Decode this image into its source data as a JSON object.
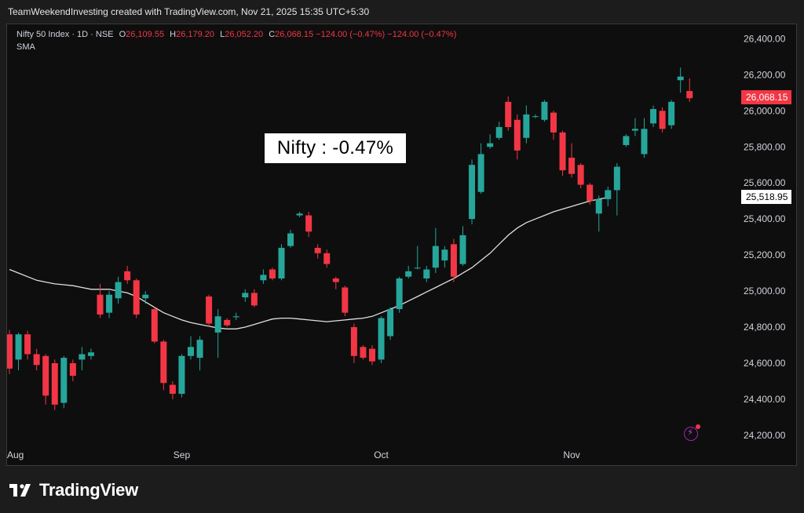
{
  "header": {
    "caption": "TeamWeekendInvesting created with TradingView.com, Nov 21, 2025 15:35 UTC+5:30"
  },
  "legend": {
    "symbol": "Nifty 50 Index · 1D · NSE",
    "open_label": "O",
    "open": "26,109.55",
    "high_label": "H",
    "high": "26,179.20",
    "low_label": "L",
    "low": "26,052.20",
    "close_label": "C",
    "close": "26,068.15",
    "change": "−124.00 (−0.47%)",
    "change2": "−124.00 (−0.47%)",
    "indicator": "SMA"
  },
  "annotation": "Nifty : -0.47%",
  "price_labels": {
    "last": "26,068.15",
    "sma": "25,518.95"
  },
  "brand": {
    "name": "TradingView"
  },
  "colors": {
    "up": "#26a69a",
    "down": "#f23645",
    "sma_line": "#e0e0e0",
    "background": "#0e0e0e"
  },
  "icons": {
    "alert": "lightning-bolt-icon"
  },
  "chart_data": {
    "type": "candlestick",
    "x_tick_labels": [
      "Aug",
      "Sep",
      "Oct",
      "Nov"
    ],
    "y_tick_labels": [
      "26,400.00",
      "26,200.00",
      "26,000.00",
      "25,800.00",
      "25,600.00",
      "25,400.00",
      "25,200.00",
      "25,000.00",
      "24,800.00",
      "24,600.00",
      "24,400.00",
      "24,200.00"
    ],
    "ylim": [
      24130,
      26480
    ],
    "candles": [
      {
        "o": 24760,
        "h": 24785,
        "l": 24540,
        "c": 24570
      },
      {
        "o": 24620,
        "h": 24770,
        "l": 24560,
        "c": 24760
      },
      {
        "o": 24760,
        "h": 24780,
        "l": 24620,
        "c": 24650
      },
      {
        "o": 24650,
        "h": 24680,
        "l": 24560,
        "c": 24590
      },
      {
        "o": 24640,
        "h": 24650,
        "l": 24370,
        "c": 24420
      },
      {
        "o": 24600,
        "h": 24620,
        "l": 24340,
        "c": 24370
      },
      {
        "o": 24380,
        "h": 24640,
        "l": 24350,
        "c": 24630
      },
      {
        "o": 24600,
        "h": 24620,
        "l": 24500,
        "c": 24530
      },
      {
        "o": 24620,
        "h": 24690,
        "l": 24560,
        "c": 24650
      },
      {
        "o": 24640,
        "h": 24680,
        "l": 24620,
        "c": 24660
      },
      {
        "o": 24980,
        "h": 25040,
        "l": 24850,
        "c": 24870
      },
      {
        "o": 24880,
        "h": 25000,
        "l": 24850,
        "c": 24980
      },
      {
        "o": 24960,
        "h": 25080,
        "l": 24930,
        "c": 25050
      },
      {
        "o": 25110,
        "h": 25140,
        "l": 25040,
        "c": 25060
      },
      {
        "o": 25060,
        "h": 25070,
        "l": 24850,
        "c": 24870
      },
      {
        "o": 24960,
        "h": 25000,
        "l": 24930,
        "c": 24980
      },
      {
        "o": 24900,
        "h": 24910,
        "l": 24710,
        "c": 24720
      },
      {
        "o": 24720,
        "h": 24730,
        "l": 24450,
        "c": 24490
      },
      {
        "o": 24480,
        "h": 24500,
        "l": 24400,
        "c": 24430
      },
      {
        "o": 24430,
        "h": 24650,
        "l": 24410,
        "c": 24640
      },
      {
        "o": 24640,
        "h": 24750,
        "l": 24620,
        "c": 24690
      },
      {
        "o": 24630,
        "h": 24750,
        "l": 24560,
        "c": 24730
      },
      {
        "o": 24970,
        "h": 24980,
        "l": 24800,
        "c": 24820
      },
      {
        "o": 24770,
        "h": 24900,
        "l": 24630,
        "c": 24860
      },
      {
        "o": 24840,
        "h": 24850,
        "l": 24800,
        "c": 24810
      },
      {
        "o": 24855,
        "h": 24880,
        "l": 24840,
        "c": 24860
      },
      {
        "o": 24965,
        "h": 25010,
        "l": 24940,
        "c": 24990
      },
      {
        "o": 24990,
        "h": 25010,
        "l": 24910,
        "c": 24920
      },
      {
        "o": 25060,
        "h": 25120,
        "l": 25040,
        "c": 25090
      },
      {
        "o": 25120,
        "h": 25130,
        "l": 25060,
        "c": 25070
      },
      {
        "o": 25070,
        "h": 25260,
        "l": 25060,
        "c": 25240
      },
      {
        "o": 25250,
        "h": 25340,
        "l": 25240,
        "c": 25320
      },
      {
        "o": 25420,
        "h": 25440,
        "l": 25410,
        "c": 25430
      },
      {
        "o": 25420,
        "h": 25440,
        "l": 25300,
        "c": 25330
      },
      {
        "o": 25240,
        "h": 25260,
        "l": 25180,
        "c": 25210
      },
      {
        "o": 25210,
        "h": 25230,
        "l": 25130,
        "c": 25150
      },
      {
        "o": 25070,
        "h": 25080,
        "l": 25010,
        "c": 25050
      },
      {
        "o": 25020,
        "h": 25030,
        "l": 24860,
        "c": 24880
      },
      {
        "o": 24800,
        "h": 24820,
        "l": 24600,
        "c": 24640
      },
      {
        "o": 24690,
        "h": 24700,
        "l": 24620,
        "c": 24630
      },
      {
        "o": 24680,
        "h": 24700,
        "l": 24590,
        "c": 24610
      },
      {
        "o": 24620,
        "h": 24860,
        "l": 24600,
        "c": 24850
      },
      {
        "o": 24750,
        "h": 24910,
        "l": 24730,
        "c": 24900
      },
      {
        "o": 24900,
        "h": 25080,
        "l": 24880,
        "c": 25070
      },
      {
        "o": 25080,
        "h": 25140,
        "l": 25070,
        "c": 25110
      },
      {
        "o": 25130,
        "h": 25250,
        "l": 25120,
        "c": 25130
      },
      {
        "o": 25070,
        "h": 25140,
        "l": 25050,
        "c": 25120
      },
      {
        "o": 25130,
        "h": 25350,
        "l": 25100,
        "c": 25250
      },
      {
        "o": 25170,
        "h": 25250,
        "l": 25130,
        "c": 25230
      },
      {
        "o": 25260,
        "h": 25290,
        "l": 25050,
        "c": 25080
      },
      {
        "o": 25150,
        "h": 25360,
        "l": 25140,
        "c": 25310
      },
      {
        "o": 25400,
        "h": 25730,
        "l": 25370,
        "c": 25700
      },
      {
        "o": 25550,
        "h": 25820,
        "l": 25540,
        "c": 25760
      },
      {
        "o": 25800,
        "h": 25870,
        "l": 25790,
        "c": 25820
      },
      {
        "o": 25850,
        "h": 25940,
        "l": 25840,
        "c": 25910
      },
      {
        "o": 26050,
        "h": 26080,
        "l": 25890,
        "c": 25910
      },
      {
        "o": 25950,
        "h": 25980,
        "l": 25730,
        "c": 25780
      },
      {
        "o": 25850,
        "h": 26030,
        "l": 25820,
        "c": 25980
      },
      {
        "o": 25970,
        "h": 25980,
        "l": 25960,
        "c": 25970
      },
      {
        "o": 25950,
        "h": 26060,
        "l": 25940,
        "c": 26050
      },
      {
        "o": 25990,
        "h": 26000,
        "l": 25840,
        "c": 25880
      },
      {
        "o": 25880,
        "h": 25890,
        "l": 25640,
        "c": 25670
      },
      {
        "o": 25740,
        "h": 25820,
        "l": 25630,
        "c": 25650
      },
      {
        "o": 25700,
        "h": 25710,
        "l": 25570,
        "c": 25590
      },
      {
        "o": 25590,
        "h": 25600,
        "l": 25480,
        "c": 25500
      },
      {
        "o": 25430,
        "h": 25530,
        "l": 25330,
        "c": 25510
      },
      {
        "o": 25510,
        "h": 25580,
        "l": 25470,
        "c": 25560
      },
      {
        "o": 25560,
        "h": 25710,
        "l": 25420,
        "c": 25690
      },
      {
        "o": 25810,
        "h": 25870,
        "l": 25800,
        "c": 25860
      },
      {
        "o": 25890,
        "h": 25960,
        "l": 25860,
        "c": 25900
      },
      {
        "o": 25760,
        "h": 25960,
        "l": 25740,
        "c": 25900
      },
      {
        "o": 25930,
        "h": 26030,
        "l": 25910,
        "c": 26010
      },
      {
        "o": 26000,
        "h": 26020,
        "l": 25880,
        "c": 25900
      },
      {
        "o": 25920,
        "h": 26060,
        "l": 25900,
        "c": 26050
      },
      {
        "o": 26170,
        "h": 26240,
        "l": 26100,
        "c": 26190
      },
      {
        "o": 26110,
        "h": 26180,
        "l": 26050,
        "c": 26070
      }
    ],
    "sma": [
      25120,
      25100,
      25080,
      25060,
      25050,
      25040,
      25035,
      25030,
      25020,
      25010,
      25010,
      25010,
      25000,
      24990,
      24970,
      24940,
      24910,
      24880,
      24860,
      24840,
      24825,
      24815,
      24805,
      24795,
      24790,
      24790,
      24800,
      24815,
      24830,
      24845,
      24850,
      24850,
      24845,
      24840,
      24835,
      24830,
      24835,
      24840,
      24845,
      24850,
      24860,
      24880,
      24900,
      24920,
      24945,
      24970,
      24995,
      25020,
      25045,
      25070,
      25100,
      25130,
      25170,
      25210,
      25260,
      25310,
      25350,
      25380,
      25400,
      25420,
      25440,
      25455,
      25470,
      25485,
      25500,
      25510,
      25520
    ]
  }
}
